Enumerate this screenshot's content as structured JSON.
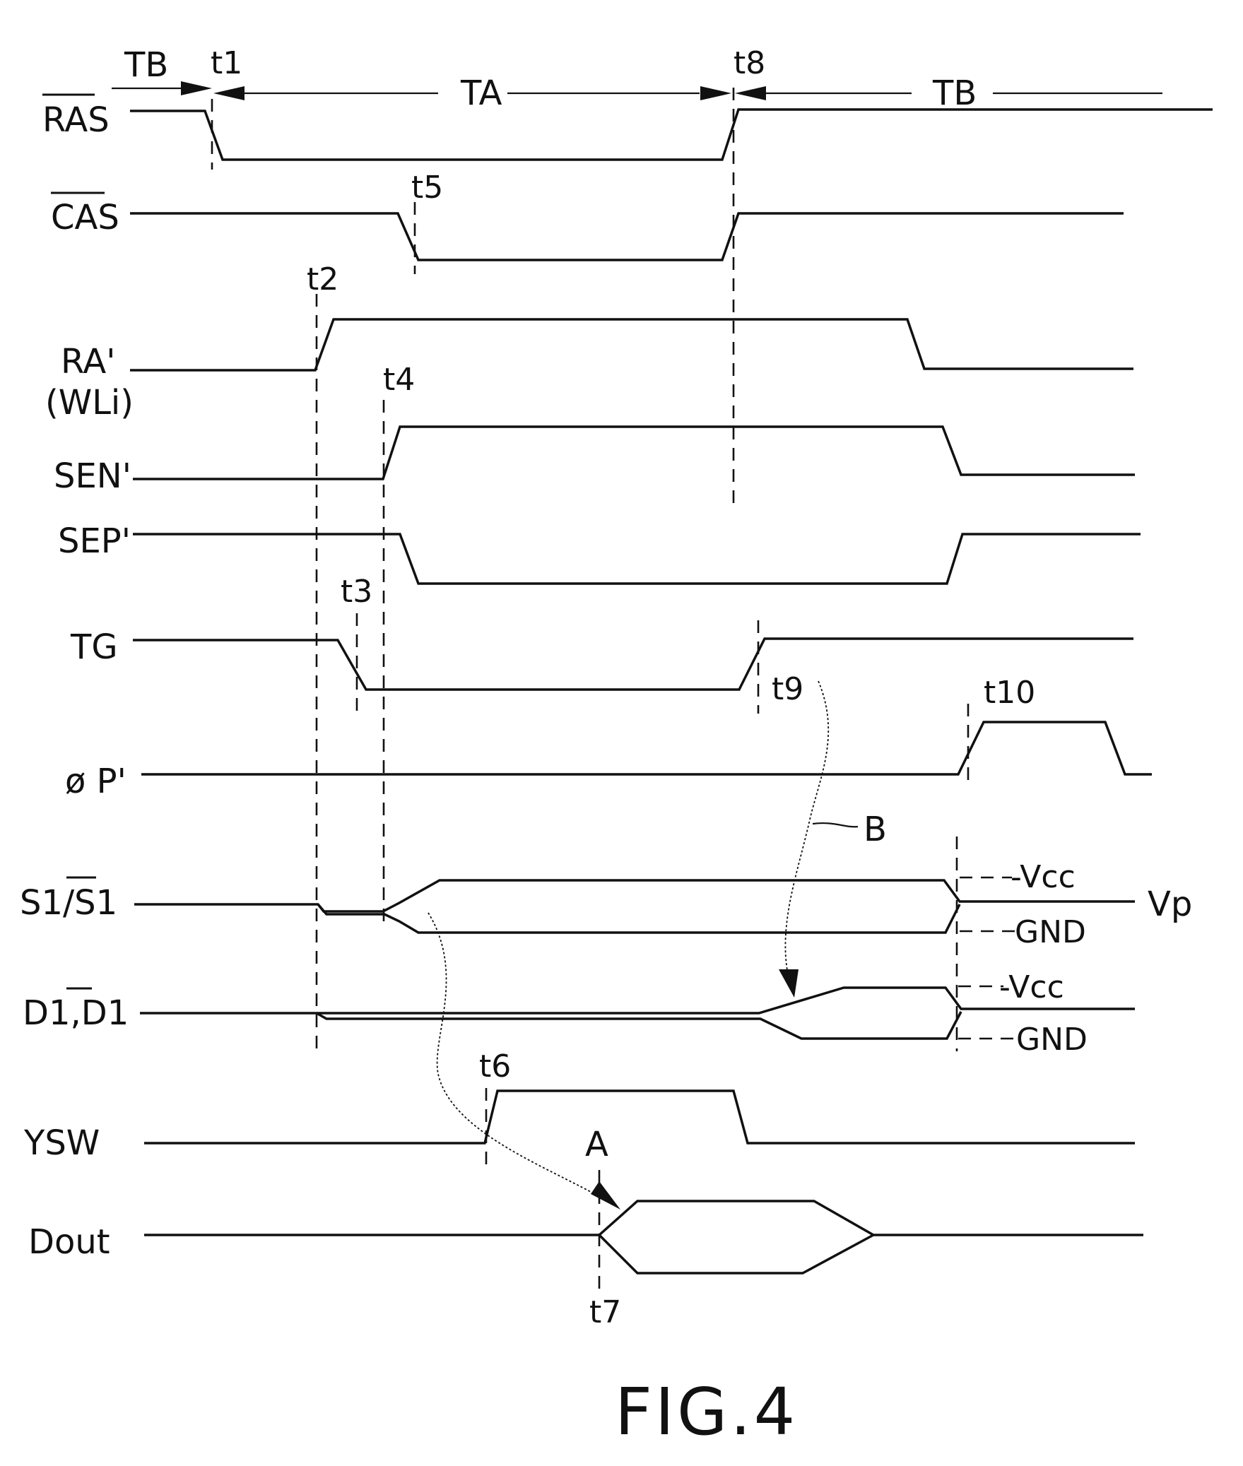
{
  "signals": {
    "ras": "RAS",
    "cas": "CAS",
    "ra": "RA'",
    "wli": "(WLi)",
    "sen": "SEN'",
    "sep": "SEP'",
    "tg": "TG",
    "pp": "ø P'",
    "s1": "S1/S1",
    "d1": "D1,D1",
    "ysw": "YSW",
    "dout": "Dout"
  },
  "times": {
    "t1": "t1",
    "t2": "t2",
    "t3": "t3",
    "t4": "t4",
    "t5": "t5",
    "t6": "t6",
    "t7": "t7",
    "t8": "t8",
    "t9": "t9",
    "t10": "t10"
  },
  "periods": {
    "tb_left": "TB",
    "ta": "TA",
    "tb_right": "TB"
  },
  "levels": {
    "vcc_s": "-Vcc",
    "gnd_s": "GND",
    "vp": "Vp",
    "vcc_d": "-Vcc",
    "gnd_d": "GND"
  },
  "markers": {
    "a": "A",
    "b": "B"
  },
  "figure": {
    "caption": "FIG.4"
  }
}
